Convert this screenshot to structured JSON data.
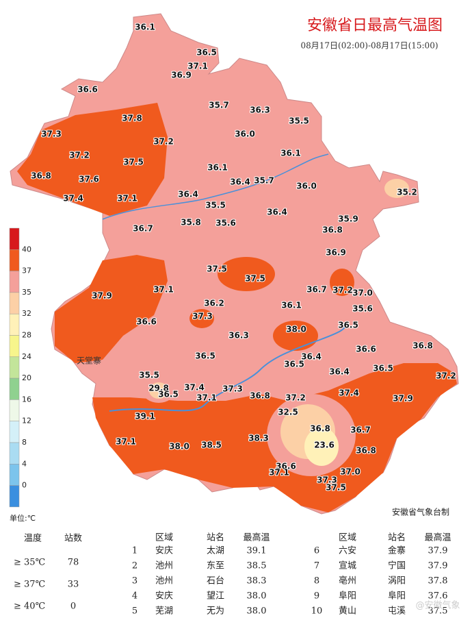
{
  "header": {
    "title": "安徽省日最高气温图",
    "subtitle": "08月17日(02:00)-08月17日(15:00)"
  },
  "map": {
    "stations": [
      "36.1",
      "36.5",
      "37.1",
      "36.9",
      "36.6",
      "35.7",
      "36.3",
      "35.5",
      "37.8",
      "37.3",
      "36.0",
      "37.2",
      "37.2",
      "37.5",
      "36.1",
      "36.1",
      "36.8",
      "37.6",
      "36.4",
      "35.7",
      "36.0",
      "35.2",
      "37.4",
      "37.1",
      "36.4",
      "35.5",
      "36.4",
      "35.9",
      "36.7",
      "35.8",
      "35.6",
      "36.8",
      "36.9",
      "37.5",
      "37.5",
      "37.1",
      "36.7",
      "37.2",
      "37.0",
      "37.9",
      "36.2",
      "36.1",
      "35.6",
      "37.3",
      "36.6",
      "36.5",
      "38.0",
      "36.3",
      "36.6",
      "36.8",
      "36.5",
      "36.4",
      "36.5",
      "36.5",
      "36.4",
      "37.2",
      "35.5",
      "37.4",
      "37.3",
      "29.8",
      "36.5",
      "37.1",
      "36.8",
      "37.2",
      "37.4",
      "37.9",
      "39.1",
      "32.5",
      "36.8",
      "36.7",
      "37.1",
      "38.0",
      "38.5",
      "38.3",
      "23.6",
      "36.8",
      "36.6",
      "37.1",
      "37.0",
      "37.3",
      "37.5"
    ],
    "place": "天堂寨",
    "credit": "安徽省气象台制"
  },
  "legend": {
    "unit": "单位:℃",
    "ticks": [
      40,
      37,
      35,
      32,
      28,
      24,
      20,
      16,
      12,
      8,
      4,
      0
    ],
    "colors": [
      "#d7191c",
      "#f05a1e",
      "#f4a09a",
      "#fcd0a6",
      "#fff1b8",
      "#f7f58c",
      "#c3e59a",
      "#8fd18f",
      "#eef8e8",
      "#d4f0f8",
      "#aadcf2",
      "#7cc4ec",
      "#3a8fdf"
    ]
  },
  "stats": {
    "headers": [
      "温度",
      "站数"
    ],
    "rows": [
      [
        "≥ 35℃",
        78
      ],
      [
        "≥ 37℃",
        33
      ],
      [
        "≥ 40℃",
        0
      ]
    ]
  },
  "ranking": {
    "headers": [
      "区域",
      "站名",
      "最高温"
    ],
    "rows": [
      [
        "1",
        "安庆",
        "太湖",
        "39.1"
      ],
      [
        "2",
        "池州",
        "东至",
        "38.5"
      ],
      [
        "3",
        "池州",
        "石台",
        "38.3"
      ],
      [
        "4",
        "安庆",
        "望江",
        "38.0"
      ],
      [
        "5",
        "芜湖",
        "无为",
        "38.0"
      ],
      [
        "6",
        "六安",
        "金寨",
        "37.9"
      ],
      [
        "7",
        "宣城",
        "宁国",
        "37.9"
      ],
      [
        "8",
        "亳州",
        "涡阳",
        "37.8"
      ],
      [
        "9",
        "阜阳",
        "阜阳",
        "37.6"
      ],
      [
        "10",
        "黄山",
        "屯溪",
        "37.5"
      ]
    ]
  },
  "watermark": "@安徽气象"
}
